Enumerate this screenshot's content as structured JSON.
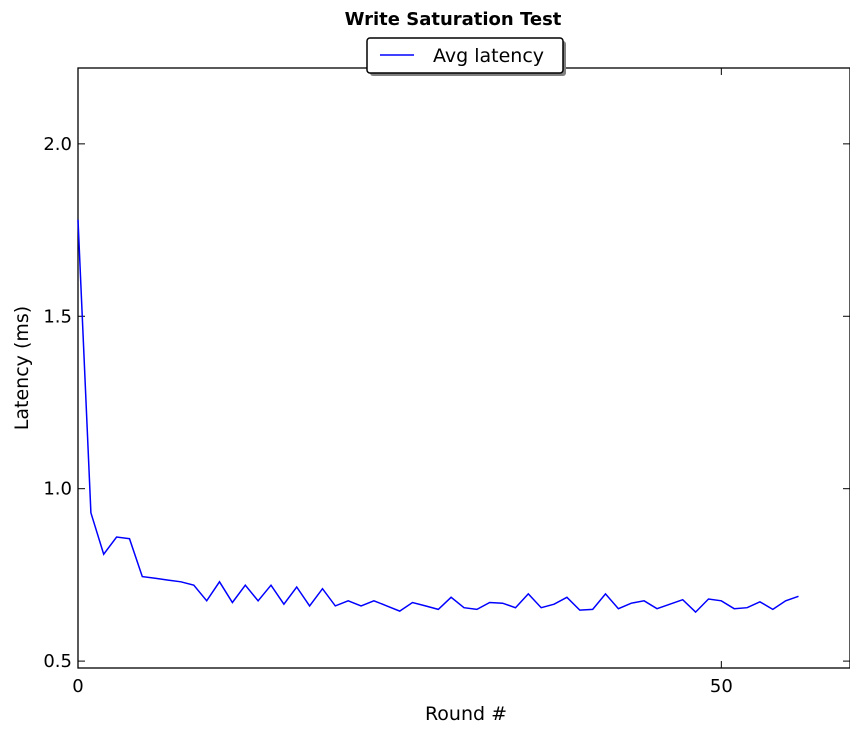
{
  "chart_data": {
    "type": "line",
    "title": "Write Saturation Test",
    "xlabel": "Round #",
    "ylabel": "Latency (ms)",
    "xlim": [
      0,
      60
    ],
    "ylim": [
      0.48,
      2.22
    ],
    "xticks": [
      0,
      50
    ],
    "xtick_labels": [
      "0",
      "50"
    ],
    "yticks": [
      0.5,
      1.0,
      1.5,
      2.0
    ],
    "ytick_labels": [
      "0.5",
      "1.0",
      "1.5",
      "2.0"
    ],
    "grid": false,
    "legend_position": "top-center",
    "series": [
      {
        "name": "Avg latency",
        "color": "#0000ff",
        "x": [
          0,
          1,
          2,
          3,
          4,
          5,
          6,
          7,
          8,
          9,
          10,
          11,
          12,
          13,
          14,
          15,
          16,
          17,
          18,
          19,
          20,
          21,
          22,
          23,
          24,
          25,
          26,
          27,
          28,
          29,
          30,
          31,
          32,
          33,
          34,
          35,
          36,
          37,
          38,
          39,
          40,
          41,
          42,
          43,
          44,
          45,
          46,
          47,
          48,
          49,
          50,
          51,
          52,
          53,
          54,
          55,
          56
        ],
        "y": [
          1.78,
          0.93,
          0.81,
          0.86,
          0.855,
          0.745,
          0.74,
          0.735,
          0.73,
          0.72,
          0.675,
          0.73,
          0.67,
          0.72,
          0.675,
          0.72,
          0.665,
          0.715,
          0.66,
          0.71,
          0.66,
          0.675,
          0.66,
          0.675,
          0.66,
          0.645,
          0.67,
          0.66,
          0.65,
          0.685,
          0.655,
          0.65,
          0.67,
          0.668,
          0.655,
          0.695,
          0.655,
          0.665,
          0.685,
          0.648,
          0.65,
          0.695,
          0.652,
          0.668,
          0.675,
          0.652,
          0.665,
          0.678,
          0.642,
          0.68,
          0.675,
          0.652,
          0.655,
          0.672,
          0.65,
          0.675,
          0.688
        ]
      }
    ]
  }
}
